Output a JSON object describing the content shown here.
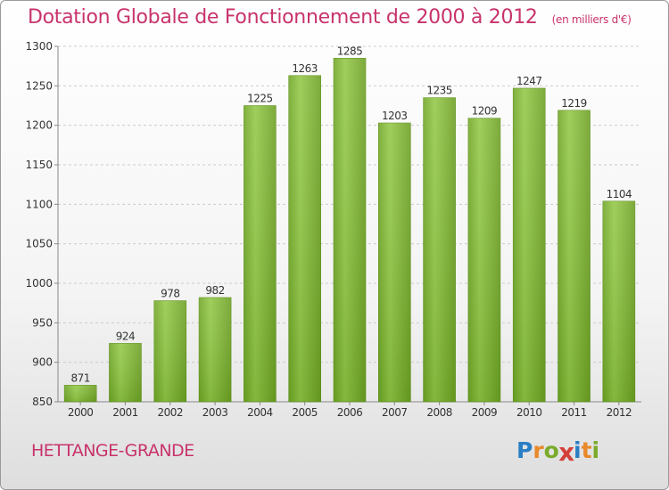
{
  "header": {
    "title": "Dotation Globale de Fonctionnement de 2000 à 2012",
    "subtitle": "(en milliers d'€)"
  },
  "footer": {
    "place": "HETTANGE-GRANDE",
    "logo_letters": [
      "P",
      "r",
      "o",
      "x",
      "i",
      "t",
      "i"
    ],
    "logo_colors": [
      "#2a7fc4",
      "#e8892a",
      "#7aaa2a",
      "#d4403a",
      "#2a7fc4",
      "#e8892a",
      "#7aaa2a"
    ]
  },
  "chart_data": {
    "type": "bar",
    "categories": [
      "2000",
      "2001",
      "2002",
      "2003",
      "2004",
      "2005",
      "2006",
      "2007",
      "2008",
      "2009",
      "2010",
      "2011",
      "2012"
    ],
    "values": [
      871,
      924,
      978,
      982,
      1225,
      1263,
      1285,
      1203,
      1235,
      1209,
      1247,
      1219,
      1104
    ],
    "ylim": [
      850,
      1300
    ],
    "yticks": [
      850,
      900,
      950,
      1000,
      1050,
      1100,
      1150,
      1200,
      1250,
      1300
    ],
    "grid": true,
    "bar_color": "#7db52e"
  }
}
